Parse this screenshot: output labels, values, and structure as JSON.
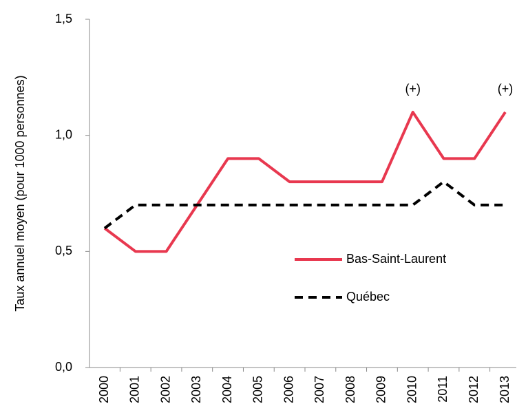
{
  "chart_data": {
    "type": "line",
    "y_label": "Taux annuel moyen (pour 1000 personnes)",
    "categories": [
      "2000",
      "2001",
      "2002",
      "2003",
      "2004",
      "2005",
      "2006",
      "2007",
      "2008",
      "2009",
      "2010",
      "2011",
      "2012",
      "2013"
    ],
    "series": [
      {
        "name": "Bas-Saint-Laurent",
        "color": "#e8384f",
        "dash": "solid",
        "values": [
          0.6,
          0.5,
          0.5,
          0.7,
          0.9,
          0.9,
          0.8,
          0.8,
          0.8,
          0.8,
          1.1,
          0.9,
          0.9,
          1.1
        ]
      },
      {
        "name": "Québec",
        "color": "#000000",
        "dash": "dashed",
        "values": [
          0.6,
          0.7,
          0.7,
          0.7,
          0.7,
          0.7,
          0.7,
          0.7,
          0.7,
          0.7,
          0.7,
          0.8,
          0.7,
          0.7
        ]
      }
    ],
    "annotations": [
      {
        "text": "(+)",
        "x": "2010"
      },
      {
        "text": "(+)",
        "x": "2013"
      }
    ],
    "ylim": [
      0,
      1.5
    ],
    "yticks": [
      {
        "value": 0,
        "label": "0,0"
      },
      {
        "value": 0.5,
        "label": "0,5"
      },
      {
        "value": 1,
        "label": "1,0"
      },
      {
        "value": 1.5,
        "label": "1,5"
      }
    ],
    "grid": false,
    "legend": "right"
  }
}
